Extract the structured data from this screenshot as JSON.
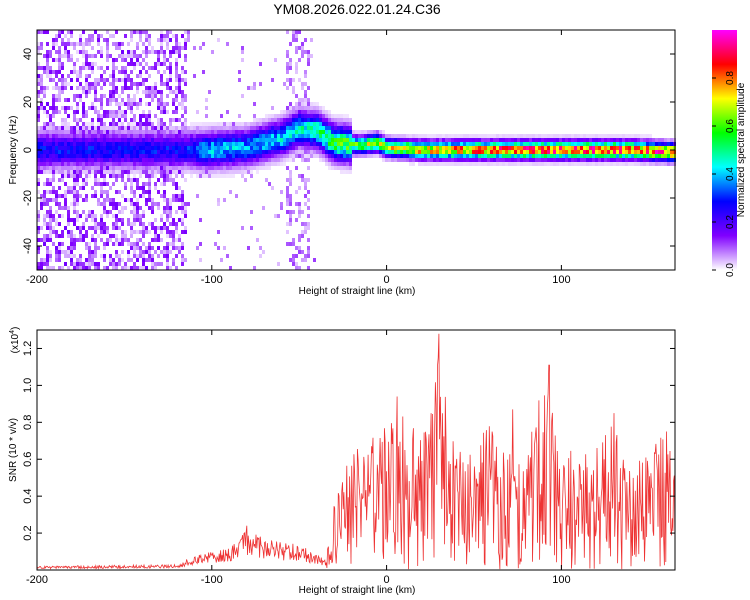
{
  "figure": {
    "title": "YM08.2026.022.01.24.C36"
  },
  "chart_data": [
    {
      "type": "heatmap",
      "title": "YM08.2026.022.01.24.C36",
      "xlabel": "Height of straight line (km)",
      "ylabel": "Frequency (Hz)",
      "xlim": [
        -200,
        165
      ],
      "ylim": [
        -50,
        50
      ],
      "x_ticks": [
        -200,
        -100,
        0,
        100
      ],
      "x_tick_labels": [
        "-200",
        "-100",
        "0",
        "100"
      ],
      "y_ticks": [
        -40,
        -20,
        0,
        20,
        40
      ],
      "y_tick_labels": [
        "-40",
        "-20",
        "0",
        "20",
        "40"
      ],
      "colorbar": {
        "label": "Normalized spectral amplitude",
        "range": [
          0,
          1
        ],
        "ticks": [
          0.0,
          0.2,
          0.4,
          0.6,
          0.8
        ],
        "tick_labels": [
          "0.0",
          "0.2",
          "0.4",
          "0.6",
          "0.8"
        ],
        "colors": [
          "#ffffff",
          "#8000ff",
          "#0000ff",
          "#00ffff",
          "#00ff00",
          "#ffff00",
          "#ff0000",
          "#ff00ff"
        ]
      },
      "description_points": {
        "noise_region_x": [
          -200,
          -115
        ],
        "band_center_track": [
          [
            -115,
            0
          ],
          [
            -100,
            0
          ],
          [
            -80,
            1
          ],
          [
            -60,
            5
          ],
          [
            -50,
            9
          ],
          [
            -40,
            8
          ],
          [
            -30,
            3
          ],
          [
            -15,
            2
          ],
          [
            -5,
            3
          ],
          [
            0,
            1
          ],
          [
            20,
            0
          ],
          [
            60,
            0
          ],
          [
            100,
            0
          ],
          [
            140,
            0
          ],
          [
            165,
            -1
          ]
        ],
        "band_peak_amplitude": [
          [
            -115,
            0.3
          ],
          [
            -100,
            0.45
          ],
          [
            -80,
            0.4
          ],
          [
            -60,
            0.45
          ],
          [
            -45,
            0.5
          ],
          [
            -30,
            0.6
          ],
          [
            0,
            0.75
          ],
          [
            40,
            0.85
          ],
          [
            80,
            0.95
          ],
          [
            120,
            0.95
          ],
          [
            165,
            0.9
          ]
        ]
      }
    },
    {
      "type": "line",
      "xlabel": "Height of straight line (km)",
      "ylabel": "SNR (10 * v/v)",
      "scale_label": "(x10",
      "scale_exponent": "4",
      "scale_suffix": ")",
      "xlim": [
        -200,
        165
      ],
      "ylim": [
        0,
        1.3
      ],
      "x_ticks": [
        -200,
        -100,
        0,
        100
      ],
      "x_tick_labels": [
        "-200",
        "-100",
        "0",
        "100"
      ],
      "y_ticks": [
        0.2,
        0.4,
        0.6,
        0.8,
        1.0,
        1.2
      ],
      "y_tick_labels": [
        "0.2",
        "0.4",
        "0.6",
        "0.8",
        "1.0",
        "1.2"
      ],
      "series": [
        {
          "name": "SNR",
          "color": "#ee3333",
          "envelope": [
            [
              -200,
              0.02
            ],
            [
              -120,
              0.03
            ],
            [
              -110,
              0.08
            ],
            [
              -90,
              0.12
            ],
            [
              -80,
              0.22
            ],
            [
              -70,
              0.18
            ],
            [
              -60,
              0.15
            ],
            [
              -50,
              0.14
            ],
            [
              -35,
              0.06
            ],
            [
              -30,
              0.35
            ],
            [
              -25,
              0.55
            ],
            [
              -15,
              0.68
            ],
            [
              -5,
              0.75
            ],
            [
              5,
              0.82
            ],
            [
              15,
              0.9
            ],
            [
              22,
              0.75
            ],
            [
              30,
              1.3
            ],
            [
              35,
              0.8
            ],
            [
              45,
              0.6
            ],
            [
              55,
              0.75
            ],
            [
              60,
              0.85
            ],
            [
              70,
              0.65
            ],
            [
              80,
              0.6
            ],
            [
              90,
              1.1
            ],
            [
              100,
              0.6
            ],
            [
              110,
              0.7
            ],
            [
              120,
              0.7
            ],
            [
              130,
              0.8
            ],
            [
              140,
              0.55
            ],
            [
              150,
              0.65
            ],
            [
              160,
              0.75
            ],
            [
              165,
              0.6
            ]
          ],
          "peaks": [
            [
              30,
              1.28
            ],
            [
              93,
              1.11
            ],
            [
              6,
              0.94
            ],
            [
              72,
              0.87
            ],
            [
              130,
              0.85
            ],
            [
              160,
              0.75
            ],
            [
              -80,
              0.24
            ]
          ]
        }
      ]
    }
  ]
}
